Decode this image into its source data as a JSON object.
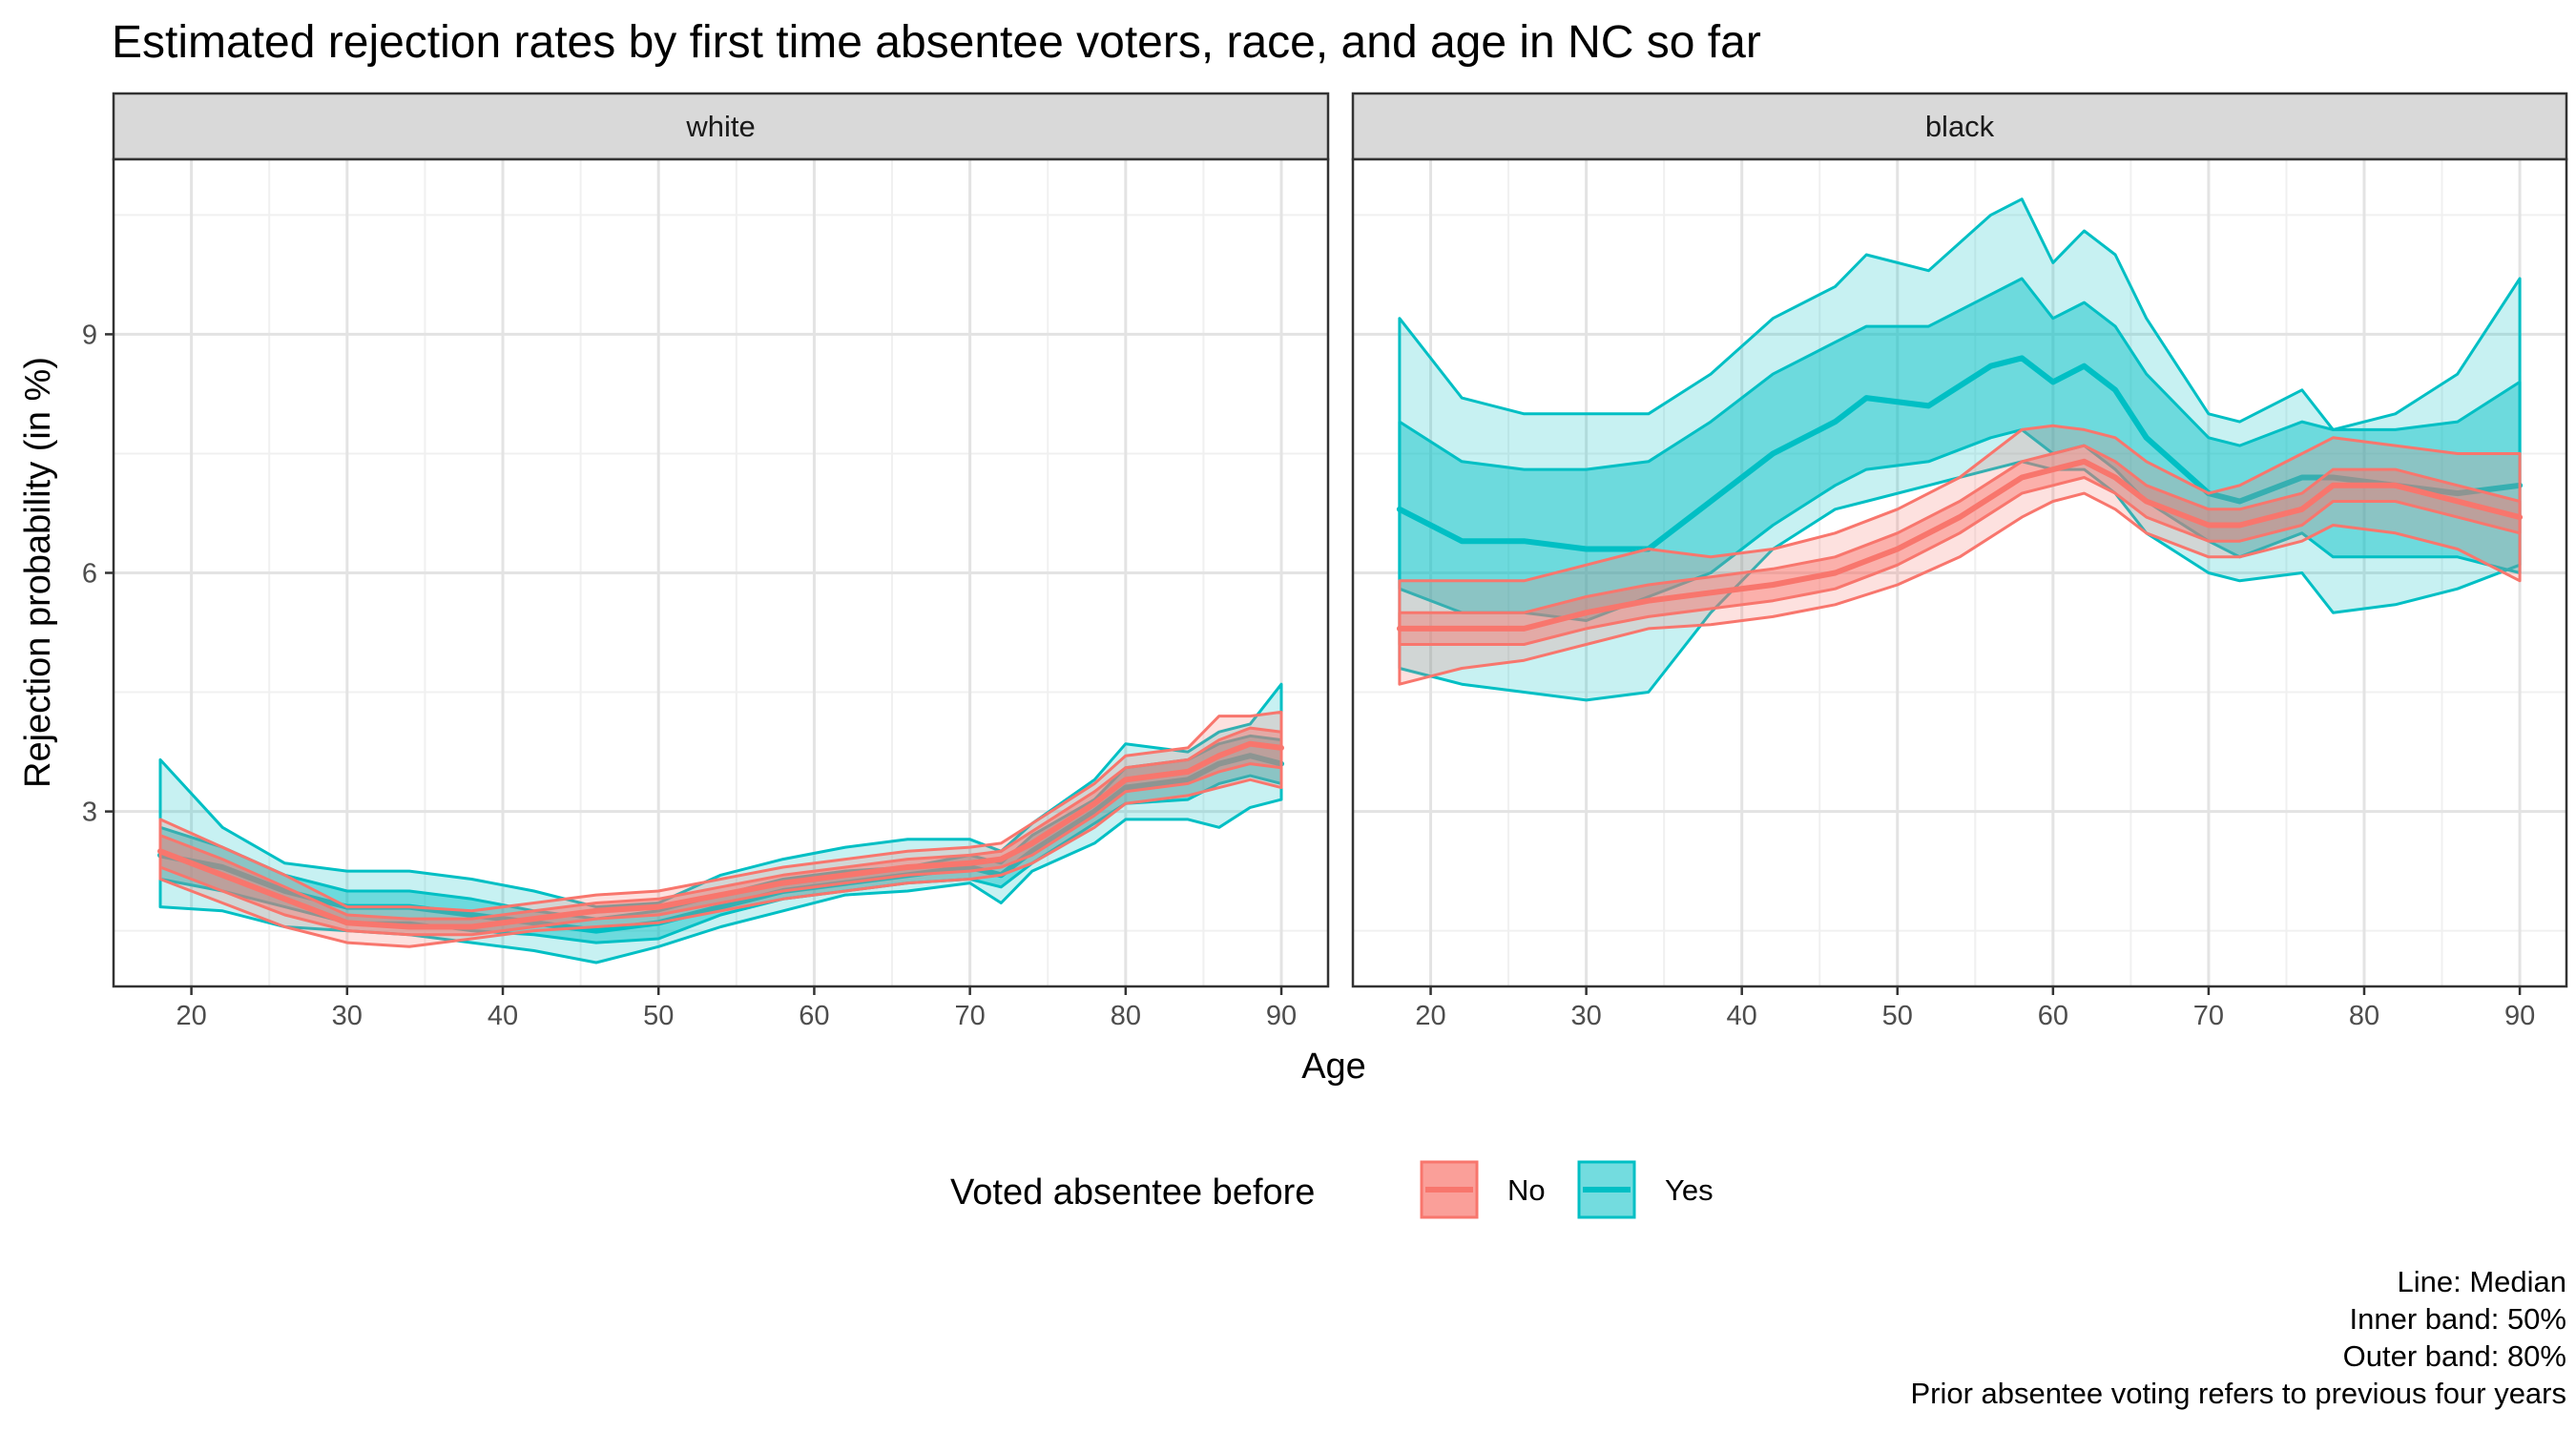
{
  "chart_data": {
    "type": "area",
    "title": "Estimated rejection rates by first time absentee voters, race, and age in NC so far",
    "xlabel": "Age",
    "ylabel": "Rejection probability (in %)",
    "xlim": [
      15,
      93
    ],
    "ylim": [
      0.8,
      11.2
    ],
    "x_ticks": [
      20,
      30,
      40,
      50,
      60,
      70,
      80,
      90
    ],
    "y_ticks": [
      3,
      6,
      9
    ],
    "grid": true,
    "legend": {
      "title": "Voted absentee before",
      "position": "bottom",
      "entries": [
        {
          "label": "No",
          "color": "#F8766D"
        },
        {
          "label": "Yes",
          "color": "#00BFC4"
        }
      ]
    },
    "caption": [
      "Line: Median",
      "Inner band: 50%",
      "Outer band: 80%",
      "Prior absentee voting refers to previous four years"
    ],
    "panels": [
      {
        "name": "white",
        "series": [
          {
            "name": "Yes",
            "x": [
              18,
              22,
              26,
              30,
              34,
              38,
              42,
              46,
              50,
              54,
              58,
              62,
              66,
              70,
              72,
              74,
              78,
              80,
              84,
              86,
              88,
              90
            ],
            "median": [
              2.45,
              2.3,
              2.0,
              1.8,
              1.8,
              1.7,
              1.6,
              1.5,
              1.6,
              1.8,
              2.0,
              2.1,
              2.2,
              2.3,
              2.2,
              2.5,
              3.0,
              3.3,
              3.4,
              3.6,
              3.7,
              3.6
            ],
            "inner_lo": [
              2.15,
              2.0,
              1.8,
              1.6,
              1.6,
              1.5,
              1.45,
              1.35,
              1.4,
              1.7,
              1.9,
              2.0,
              2.1,
              2.15,
              2.05,
              2.35,
              2.85,
              3.1,
              3.15,
              3.35,
              3.45,
              3.35
            ],
            "inner_hi": [
              2.8,
              2.55,
              2.2,
              2.0,
              2.0,
              1.9,
              1.75,
              1.65,
              1.75,
              1.95,
              2.15,
              2.25,
              2.3,
              2.45,
              2.35,
              2.7,
              3.15,
              3.55,
              3.65,
              3.85,
              3.95,
              3.9
            ],
            "outer_lo": [
              1.8,
              1.75,
              1.55,
              1.5,
              1.45,
              1.35,
              1.25,
              1.1,
              1.3,
              1.55,
              1.75,
              1.95,
              2.0,
              2.1,
              1.85,
              2.25,
              2.6,
              2.9,
              2.9,
              2.8,
              3.05,
              3.15
            ],
            "outer_hi": [
              3.65,
              2.8,
              2.35,
              2.25,
              2.25,
              2.15,
              2.0,
              1.8,
              1.85,
              2.2,
              2.4,
              2.55,
              2.65,
              2.65,
              2.5,
              2.85,
              3.4,
              3.85,
              3.75,
              4.0,
              4.1,
              4.6
            ]
          },
          {
            "name": "No",
            "x": [
              18,
              22,
              26,
              30,
              34,
              38,
              42,
              46,
              50,
              54,
              58,
              62,
              66,
              70,
              72,
              74,
              78,
              80,
              84,
              86,
              88,
              90
            ],
            "median": [
              2.5,
              2.2,
              1.9,
              1.6,
              1.55,
              1.55,
              1.65,
              1.75,
              1.8,
              1.95,
              2.1,
              2.2,
              2.3,
              2.35,
              2.4,
              2.6,
              3.1,
              3.4,
              3.5,
              3.7,
              3.85,
              3.8
            ],
            "inner_lo": [
              2.3,
              2.0,
              1.7,
              1.5,
              1.45,
              1.45,
              1.55,
              1.65,
              1.7,
              1.85,
              2.0,
              2.1,
              2.2,
              2.25,
              2.3,
              2.45,
              2.95,
              3.25,
              3.35,
              3.5,
              3.6,
              3.55
            ],
            "inner_hi": [
              2.7,
              2.4,
              2.05,
              1.7,
              1.65,
              1.65,
              1.75,
              1.85,
              1.9,
              2.05,
              2.2,
              2.3,
              2.4,
              2.45,
              2.5,
              2.75,
              3.25,
              3.55,
              3.65,
              3.9,
              4.05,
              4.0
            ],
            "outer_lo": [
              2.15,
              1.85,
              1.55,
              1.35,
              1.3,
              1.4,
              1.5,
              1.55,
              1.6,
              1.75,
              1.9,
              2.0,
              2.1,
              2.15,
              2.2,
              2.35,
              2.8,
              3.1,
              3.2,
              3.3,
              3.4,
              3.3
            ],
            "outer_hi": [
              2.9,
              2.55,
              2.2,
              1.8,
              1.8,
              1.75,
              1.85,
              1.95,
              2.0,
              2.15,
              2.3,
              2.4,
              2.5,
              2.55,
              2.6,
              2.85,
              3.35,
              3.7,
              3.8,
              4.2,
              4.2,
              4.25
            ]
          }
        ]
      },
      {
        "name": "black",
        "series": [
          {
            "name": "Yes",
            "x": [
              18,
              22,
              26,
              30,
              34,
              38,
              42,
              46,
              48,
              52,
              56,
              58,
              60,
              62,
              64,
              66,
              70,
              72,
              76,
              78,
              82,
              86,
              90
            ],
            "median": [
              6.8,
              6.4,
              6.4,
              6.3,
              6.3,
              6.9,
              7.5,
              7.9,
              8.2,
              8.1,
              8.6,
              8.7,
              8.4,
              8.6,
              8.3,
              7.7,
              7.0,
              6.9,
              7.2,
              7.2,
              7.1,
              7.0,
              7.1
            ],
            "inner_lo": [
              5.8,
              5.5,
              5.5,
              5.4,
              5.7,
              6.0,
              6.6,
              7.1,
              7.3,
              7.4,
              7.7,
              7.8,
              7.5,
              7.6,
              7.3,
              6.9,
              6.4,
              6.2,
              6.5,
              6.2,
              6.2,
              6.2,
              6.0
            ],
            "inner_hi": [
              7.9,
              7.4,
              7.3,
              7.3,
              7.4,
              7.9,
              8.5,
              8.9,
              9.1,
              9.1,
              9.5,
              9.7,
              9.2,
              9.4,
              9.1,
              8.5,
              7.7,
              7.6,
              7.9,
              7.8,
              7.8,
              7.9,
              8.4
            ],
            "outer_lo": [
              4.8,
              4.6,
              4.5,
              4.4,
              4.5,
              5.5,
              6.3,
              6.8,
              6.9,
              7.1,
              7.3,
              7.4,
              7.3,
              7.3,
              7.0,
              6.5,
              6.0,
              5.9,
              6.0,
              5.5,
              5.6,
              5.8,
              6.1
            ],
            "outer_hi": [
              9.2,
              8.2,
              8.0,
              8.0,
              8.0,
              8.5,
              9.2,
              9.6,
              10.0,
              9.8,
              10.5,
              10.7,
              9.9,
              10.3,
              10.0,
              9.2,
              8.0,
              7.9,
              8.3,
              7.8,
              8.0,
              8.5,
              9.7
            ]
          },
          {
            "name": "No",
            "x": [
              18,
              22,
              26,
              30,
              34,
              38,
              42,
              46,
              50,
              54,
              58,
              60,
              62,
              64,
              66,
              70,
              72,
              76,
              78,
              82,
              86,
              90
            ],
            "median": [
              5.3,
              5.3,
              5.3,
              5.5,
              5.65,
              5.75,
              5.85,
              6.0,
              6.3,
              6.7,
              7.2,
              7.3,
              7.4,
              7.2,
              6.9,
              6.6,
              6.6,
              6.8,
              7.1,
              7.1,
              6.9,
              6.7
            ],
            "inner_lo": [
              5.1,
              5.1,
              5.1,
              5.3,
              5.45,
              5.55,
              5.65,
              5.8,
              6.1,
              6.5,
              7.0,
              7.1,
              7.2,
              7.0,
              6.7,
              6.4,
              6.4,
              6.6,
              6.9,
              6.9,
              6.7,
              6.5
            ],
            "inner_hi": [
              5.5,
              5.5,
              5.5,
              5.7,
              5.85,
              5.95,
              6.05,
              6.2,
              6.5,
              6.9,
              7.4,
              7.5,
              7.6,
              7.4,
              7.1,
              6.8,
              6.8,
              7.0,
              7.3,
              7.3,
              7.1,
              6.9
            ],
            "outer_lo": [
              4.6,
              4.8,
              4.9,
              5.1,
              5.3,
              5.35,
              5.45,
              5.6,
              5.85,
              6.2,
              6.7,
              6.9,
              7.0,
              6.8,
              6.5,
              6.2,
              6.2,
              6.4,
              6.6,
              6.5,
              6.3,
              5.9
            ],
            "outer_hi": [
              5.9,
              5.9,
              5.9,
              6.1,
              6.3,
              6.2,
              6.3,
              6.5,
              6.8,
              7.2,
              7.8,
              7.85,
              7.8,
              7.7,
              7.4,
              7.0,
              7.1,
              7.5,
              7.7,
              7.6,
              7.5,
              7.5
            ]
          }
        ]
      }
    ]
  }
}
